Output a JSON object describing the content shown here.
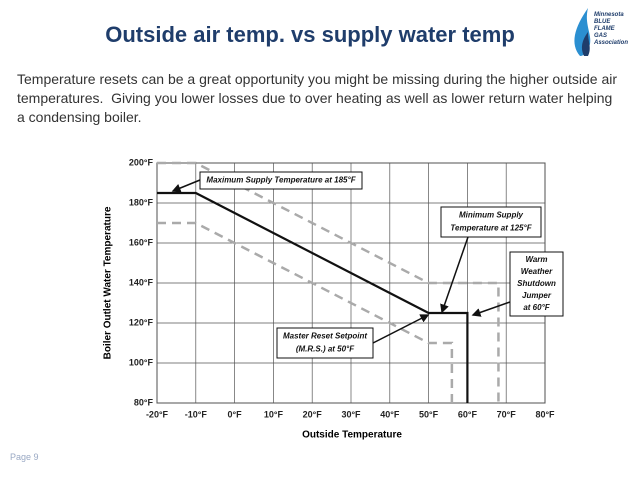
{
  "slide": {
    "title": "Outside air temp. vs supply water temp",
    "paragraph": [
      "Temperature resets can be a great opportunity you might be missing during the higher outside air",
      "temperatures.  Giving you lower losses due to over heating as well as lower return water helping",
      "a condensing boiler."
    ],
    "page": "Page 9",
    "logo": [
      "Minnesota",
      "BLUE",
      "FLAME",
      "GAS",
      "Association"
    ]
  },
  "chart_data": {
    "type": "line",
    "x_label": "Outside Temperature",
    "y_label": "Boiler Outlet Water Temperature",
    "xlim": [
      -20,
      80
    ],
    "xticks": [
      {
        "value": -20,
        "label": "-20°F"
      },
      {
        "value": -10,
        "label": "-10°F"
      },
      {
        "value": 0,
        "label": "0°F"
      },
      {
        "value": 10,
        "label": "10°F"
      },
      {
        "value": 20,
        "label": "20°F"
      },
      {
        "value": 30,
        "label": "30°F"
      },
      {
        "value": 40,
        "label": "40°F"
      },
      {
        "value": 50,
        "label": "50°F"
      },
      {
        "value": 60,
        "label": "60°F"
      },
      {
        "value": 70,
        "label": "70°F"
      },
      {
        "value": 80,
        "label": "80°F"
      }
    ],
    "ylim": [
      80,
      200
    ],
    "yticks": [
      {
        "value": 80,
        "label": "80°F"
      },
      {
        "value": 100,
        "label": "100°F"
      },
      {
        "value": 120,
        "label": "120°F"
      },
      {
        "value": 140,
        "label": "140°F"
      },
      {
        "value": 160,
        "label": "160°F"
      },
      {
        "value": 180,
        "label": "180°F"
      },
      {
        "value": 200,
        "label": "200°F"
      }
    ],
    "grid": true,
    "series": [
      {
        "color": "#aaaaaa",
        "dashed": true,
        "x": [
          -20,
          -10,
          50,
          68,
          68
        ],
        "values": [
          200,
          200,
          140,
          140,
          80
        ]
      },
      {
        "color": "#aaaaaa",
        "dashed": true,
        "x": [
          -20,
          -10,
          50,
          56,
          56
        ],
        "values": [
          170,
          170,
          110,
          110,
          80
        ]
      },
      {
        "color": "#111111",
        "dashed": false,
        "x": [
          -20,
          -10,
          50,
          60,
          60
        ],
        "values": [
          185,
          185,
          125,
          125,
          80
        ]
      }
    ],
    "annotations": [
      {
        "lines": [
          "Maximum Supply Temperature at 185°F"
        ]
      },
      {
        "lines": [
          "Minimum Supply",
          "Temperature at 125°F"
        ]
      },
      {
        "lines": [
          "Warm",
          "Weather",
          "Shutdown",
          "Jumper",
          "at 60°F"
        ]
      },
      {
        "lines": [
          "Master Reset Setpoint",
          "(M.R.S.) at 50°F"
        ]
      }
    ]
  }
}
